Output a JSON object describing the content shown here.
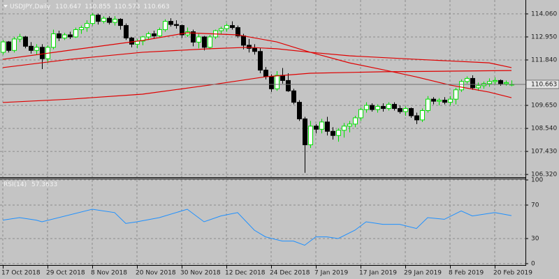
{
  "chart_data": [
    {
      "type": "candlestick",
      "title": "USDJPY,Daily",
      "categories": [
        "17 Oct 2018",
        null,
        null,
        null,
        null,
        null,
        null,
        null,
        "29 Oct 2018",
        null,
        null,
        null,
        null,
        null,
        null,
        null,
        "8 Nov 2018",
        null,
        null,
        null,
        null,
        null,
        null,
        null,
        "20 Nov 2018",
        null,
        null,
        null,
        null,
        null,
        null,
        null,
        "30 Nov 2018",
        null,
        null,
        null,
        null,
        null,
        null,
        null,
        "12 Dec 2018",
        null,
        null,
        null,
        null,
        null,
        null,
        null,
        "24 Dec 2018",
        null,
        null,
        null,
        null,
        null,
        null,
        null,
        "7 Jan 2019",
        null,
        null,
        null,
        null,
        null,
        null,
        null,
        "17 Jan 2019",
        null,
        null,
        null,
        null,
        null,
        null,
        null,
        "29 Jan 2019",
        null,
        null,
        null,
        null,
        null,
        null,
        null,
        "8 Feb 2019",
        null,
        null,
        null,
        null,
        null,
        null,
        null,
        "20 Feb 2019",
        null,
        null,
        null
      ],
      "open": [
        112.21,
        112.71,
        112.3,
        112.85,
        112.95,
        112.5,
        112.3,
        112.45,
        111.9,
        112.45,
        113.1,
        112.9,
        113.05,
        112.95,
        113.3,
        113.4,
        113.6,
        114.0,
        113.7,
        113.85,
        113.65,
        113.8,
        113.5,
        112.9,
        112.6,
        112.75,
        112.95,
        113.1,
        113.0,
        113.3,
        113.7,
        113.55,
        113.5,
        113.05,
        113.2,
        112.7,
        112.95,
        112.45,
        112.95,
        113.25,
        113.35,
        113.5,
        113.4,
        113.0,
        112.55,
        112.4,
        112.25,
        111.35,
        111.05,
        110.45,
        111.1,
        110.85,
        110.35,
        109.8,
        109.0,
        107.75,
        108.65,
        108.5,
        108.85,
        108.4,
        108.2,
        108.45,
        108.65,
        108.75,
        109.05,
        109.45,
        109.65,
        109.45,
        109.6,
        109.5,
        109.7,
        109.5,
        109.35,
        109.5,
        109.15,
        108.95,
        109.4,
        109.95,
        109.85,
        109.9,
        109.8,
        109.95,
        110.4,
        110.8,
        110.95,
        110.5,
        110.6,
        110.7,
        110.8,
        110.85,
        110.7,
        110.647
      ],
      "high": [
        112.8,
        112.75,
        112.95,
        113.1,
        113.0,
        112.7,
        112.6,
        112.6,
        112.55,
        113.3,
        113.25,
        113.15,
        113.2,
        113.4,
        113.5,
        113.75,
        114.1,
        114.08,
        113.95,
        113.95,
        113.95,
        113.85,
        113.6,
        112.95,
        112.85,
        113.0,
        113.2,
        113.25,
        113.4,
        113.8,
        113.85,
        113.75,
        113.55,
        113.4,
        113.3,
        113.1,
        113.0,
        113.05,
        113.3,
        113.45,
        113.6,
        113.7,
        113.5,
        113.1,
        112.85,
        112.6,
        112.4,
        111.5,
        111.15,
        111.3,
        111.45,
        111.2,
        110.45,
        109.9,
        109.1,
        108.9,
        108.75,
        109.0,
        109.1,
        108.6,
        108.55,
        108.8,
        108.9,
        109.15,
        109.55,
        109.8,
        109.75,
        109.7,
        109.75,
        109.8,
        109.8,
        109.65,
        109.6,
        109.55,
        109.3,
        109.5,
        110.1,
        110.05,
        110.0,
        110.05,
        110.1,
        110.5,
        110.9,
        111.05,
        111.1,
        110.75,
        110.8,
        110.95,
        111.0,
        110.9,
        110.85,
        110.855
      ],
      "low": [
        112.1,
        112.2,
        112.2,
        112.7,
        112.4,
        112.15,
        112.1,
        111.4,
        111.7,
        112.35,
        112.75,
        112.8,
        112.85,
        112.9,
        113.1,
        113.2,
        113.5,
        113.55,
        113.6,
        113.55,
        113.5,
        113.3,
        112.8,
        112.45,
        112.4,
        112.55,
        112.8,
        112.85,
        112.95,
        113.2,
        113.45,
        113.35,
        112.9,
        112.95,
        112.5,
        112.4,
        112.3,
        112.35,
        112.85,
        113.1,
        113.2,
        113.3,
        112.9,
        112.35,
        112.2,
        112.1,
        111.2,
        110.9,
        110.3,
        110.35,
        110.7,
        110.3,
        109.7,
        108.9,
        106.4,
        107.6,
        108.3,
        108.3,
        108.2,
        108.0,
        107.9,
        108.1,
        108.35,
        108.6,
        108.9,
        109.3,
        109.35,
        109.3,
        109.35,
        109.4,
        109.4,
        109.25,
        109.15,
        109.05,
        108.75,
        108.85,
        109.3,
        109.7,
        109.65,
        109.7,
        109.65,
        109.7,
        110.3,
        110.7,
        110.4,
        110.35,
        110.45,
        110.55,
        110.65,
        110.6,
        110.6,
        110.573
      ],
      "close": [
        112.71,
        112.3,
        112.85,
        112.95,
        112.5,
        112.3,
        112.45,
        111.9,
        112.45,
        113.1,
        112.9,
        113.05,
        112.95,
        113.3,
        113.4,
        113.6,
        114.0,
        113.7,
        113.85,
        113.65,
        113.8,
        113.5,
        112.9,
        112.6,
        112.75,
        112.95,
        113.1,
        113.0,
        113.3,
        113.7,
        113.55,
        113.5,
        113.05,
        113.2,
        112.7,
        112.95,
        112.45,
        112.95,
        113.25,
        113.35,
        113.5,
        113.4,
        113.0,
        112.55,
        112.4,
        112.25,
        111.35,
        111.05,
        110.45,
        111.1,
        110.85,
        110.35,
        109.8,
        109.0,
        107.75,
        108.65,
        108.5,
        108.85,
        108.4,
        108.2,
        108.45,
        108.65,
        108.75,
        109.05,
        109.45,
        109.65,
        109.45,
        109.6,
        109.5,
        109.7,
        109.5,
        109.35,
        109.5,
        109.15,
        108.95,
        109.4,
        109.95,
        109.85,
        109.9,
        109.8,
        109.95,
        110.4,
        110.8,
        110.95,
        110.5,
        110.6,
        110.7,
        110.8,
        110.85,
        110.7,
        110.75,
        110.663
      ],
      "up_color": "#00e000",
      "down_color": "#000000",
      "overlays": [
        {
          "color": "#e00000",
          "x": [
            0,
            12,
            25,
            33,
            42,
            49,
            55,
            62,
            68,
            74,
            80,
            87,
            91
          ],
          "values": [
            111.87,
            112.31,
            112.78,
            113.15,
            113.05,
            112.71,
            112.21,
            111.7,
            111.37,
            111.02,
            110.63,
            110.29,
            110.02
          ]
        },
        {
          "color": "#e00000",
          "x": [
            0,
            12,
            25,
            37,
            44,
            49,
            55,
            62,
            74,
            87,
            91
          ],
          "values": [
            111.47,
            111.87,
            112.21,
            112.38,
            112.45,
            112.38,
            112.21,
            112.04,
            111.87,
            111.7,
            111.47
          ]
        },
        {
          "color": "#e00000",
          "x": [
            0,
            12,
            25,
            37,
            47,
            55,
            68,
            80,
            91
          ],
          "values": [
            109.79,
            109.95,
            110.19,
            110.63,
            111.03,
            111.2,
            111.27,
            111.3,
            111.33
          ]
        }
      ],
      "ylim": [
        106.19,
        114.73
      ],
      "yticks": [
        {
          "value": 114.06,
          "label": "114.060"
        },
        {
          "value": 112.95,
          "label": "112.950"
        },
        {
          "value": 111.84,
          "label": "111.840"
        },
        {
          "value": 109.65,
          "label": "109.650"
        },
        {
          "value": 108.54,
          "label": "108.540"
        },
        {
          "value": 107.43,
          "label": "107.430"
        },
        {
          "value": 106.32,
          "label": "106.320"
        }
      ],
      "grid": true
    },
    {
      "type": "line",
      "title": "RSI(14)",
      "color": "#1e90ff",
      "x": [
        0,
        3,
        6,
        7,
        16,
        20,
        22,
        24,
        28,
        33,
        36,
        39,
        42,
        45,
        47,
        50,
        52,
        54,
        56,
        58,
        60,
        63,
        65,
        68,
        71,
        74,
        76,
        79,
        82,
        84,
        88,
        91
      ],
      "values": [
        52,
        55,
        52,
        50,
        65,
        61,
        48,
        50,
        55,
        65,
        50,
        57,
        61,
        40,
        32,
        27,
        27,
        22,
        32,
        32,
        30,
        40,
        50,
        47,
        47,
        42,
        55,
        53,
        63,
        57,
        61,
        57.3633
      ],
      "ylim": [
        0,
        100
      ],
      "yticks": [
        0,
        30,
        70,
        100
      ],
      "grid": true
    }
  ]
}
